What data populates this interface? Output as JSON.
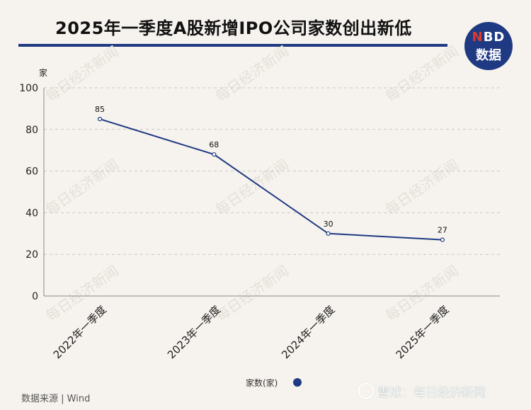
{
  "header": {
    "title": "2025年一季度A股新增IPO公司家数创出新低",
    "logo_top_red": "N",
    "logo_top_rest": "BD",
    "logo_bottom": "数据"
  },
  "footer": {
    "source": "数据来源 | Wind",
    "watermark": "雪球：每日经济新闻"
  },
  "watermark_text": "每日经济新闻",
  "colors": {
    "line": "#1f3a82",
    "accent": "#1f3a82",
    "grid": "#c8c8c8",
    "background": "#f6f3ee"
  },
  "chart_data": {
    "type": "line",
    "title": "",
    "xlabel": "",
    "ylabel": "家",
    "categories": [
      "2022年一季度",
      "2023年一季度",
      "2024年一季度",
      "2025年一季度"
    ],
    "series": [
      {
        "name": "家数(家)",
        "values": [
          85,
          68,
          30,
          27
        ]
      }
    ],
    "ylim": [
      0,
      100
    ],
    "yticks": [
      0,
      20,
      40,
      60,
      80,
      100
    ],
    "grid": true,
    "legend": "bottom-center",
    "data_labels": true
  }
}
